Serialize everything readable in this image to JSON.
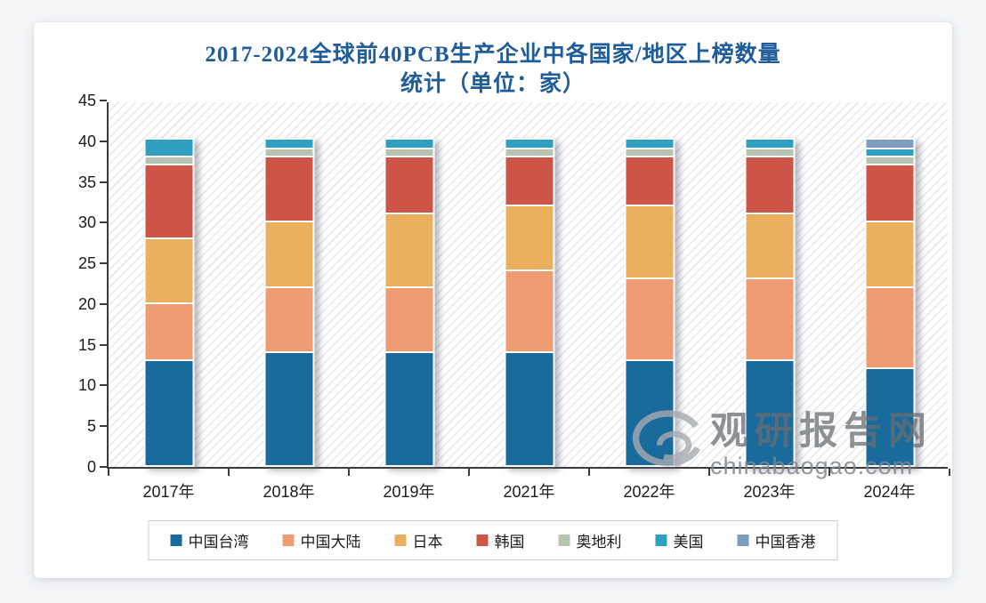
{
  "title": {
    "line1": "2017-2024全球前40PCB生产企业中各国家/地区上榜数量",
    "line2": "统计（单位：家）"
  },
  "watermark": {
    "name": "观研报告网",
    "domain": "chinabaogao.com",
    "logo": "swirl-g-logo"
  },
  "axes": {
    "yticks": [
      0,
      5,
      10,
      15,
      20,
      25,
      30,
      35,
      40,
      45
    ],
    "text_color": "#1c1c1c"
  },
  "chart_data": {
    "type": "bar",
    "stacked": true,
    "title": "2017-2024全球前40PCB生产企业中各国家/地区上榜数量统计（单位：家）",
    "xlabel": "",
    "ylabel": "",
    "ylim": [
      0,
      45
    ],
    "grid": false,
    "legend_position": "bottom",
    "categories": [
      "2017年",
      "2018年",
      "2019年",
      "2021年",
      "2022年",
      "2023年",
      "2024年"
    ],
    "series": [
      {
        "name": "中国台湾",
        "color": "#1a6b9d",
        "values": [
          13,
          14,
          14,
          14,
          13,
          13,
          12
        ]
      },
      {
        "name": "中国大陆",
        "color": "#f09c73",
        "values": [
          7,
          8,
          8,
          10,
          10,
          10,
          10
        ]
      },
      {
        "name": "日本",
        "color": "#eab05f",
        "values": [
          8,
          8,
          9,
          8,
          9,
          8,
          8
        ]
      },
      {
        "name": "韩国",
        "color": "#cd5547",
        "values": [
          9,
          8,
          7,
          6,
          6,
          7,
          7
        ]
      },
      {
        "name": "奥地利",
        "color": "#b7c5b0",
        "values": [
          1,
          1,
          1,
          1,
          1,
          1,
          1
        ]
      },
      {
        "name": "美国",
        "color": "#2fa0c2",
        "values": [
          2,
          1,
          1,
          1,
          1,
          1,
          1
        ]
      },
      {
        "name": "中国香港",
        "color": "#7e9cc0",
        "values": [
          0,
          0,
          0,
          0,
          0,
          0,
          1
        ]
      }
    ],
    "totals_per_year": [
      40,
      40,
      40,
      40,
      40,
      40,
      40
    ]
  }
}
